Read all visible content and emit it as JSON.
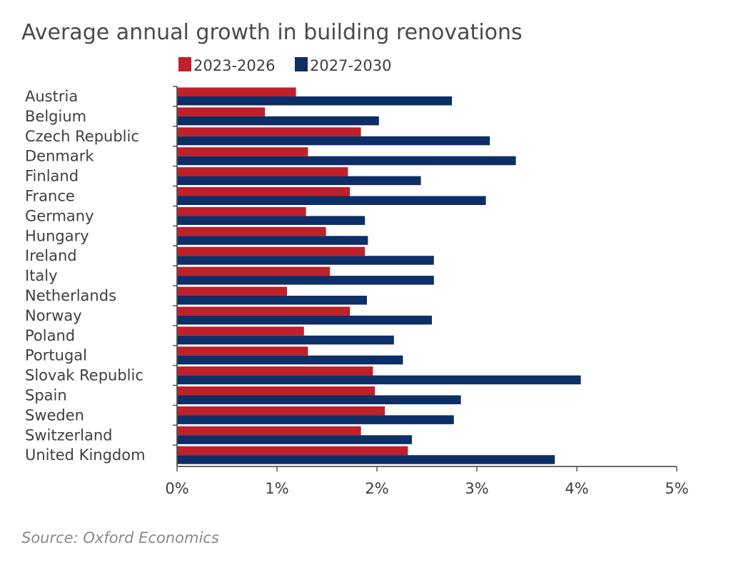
{
  "chart_data": {
    "type": "bar",
    "orientation": "horizontal",
    "title": "Average annual growth in building renovations",
    "source": "Source: Oxford Economics",
    "categories": [
      "Austria",
      "Belgium",
      "Czech Republic",
      "Denmark",
      "Finland",
      "France",
      "Germany",
      "Hungary",
      "Ireland",
      "Italy",
      "Netherlands",
      "Norway",
      "Poland",
      "Portugal",
      "Slovak Republic",
      "Spain",
      "Sweden",
      "Switzerland",
      "United Kingdom"
    ],
    "series": [
      {
        "name": "2023-2026",
        "color": "#c0202a",
        "values": [
          1.19,
          0.88,
          1.84,
          1.31,
          1.71,
          1.73,
          1.29,
          1.49,
          1.88,
          1.53,
          1.1,
          1.73,
          1.27,
          1.31,
          1.96,
          1.98,
          2.08,
          1.84,
          2.31
        ]
      },
      {
        "name": "2027-2030",
        "color": "#0d2e66",
        "values": [
          2.75,
          2.02,
          3.13,
          3.39,
          2.44,
          3.09,
          1.88,
          1.91,
          2.57,
          2.57,
          1.9,
          2.55,
          2.17,
          2.26,
          4.04,
          2.84,
          2.77,
          2.35,
          3.78
        ]
      }
    ],
    "xlim": [
      0,
      5
    ],
    "xticks": [
      "0%",
      "1%",
      "2%",
      "3%",
      "4%",
      "5%"
    ],
    "legend": "top",
    "grid": false
  }
}
